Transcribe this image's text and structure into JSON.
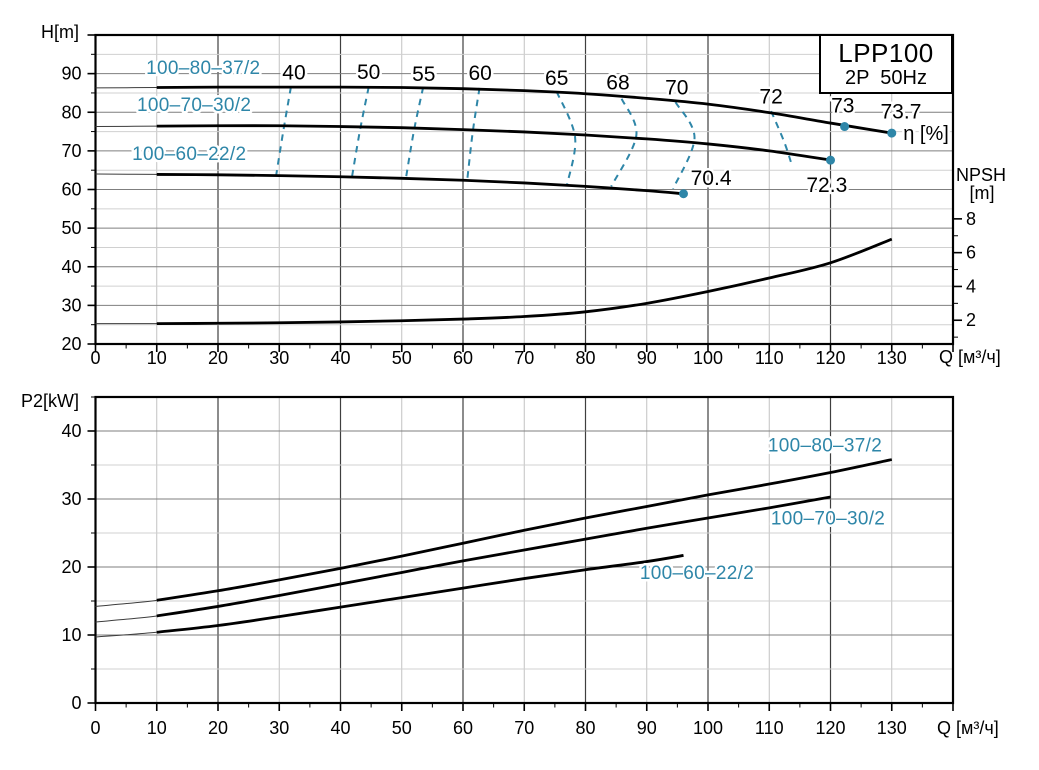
{
  "title_box": {
    "model": "LPP100",
    "spec": "2P  50Hz"
  },
  "colors": {
    "accent": "#2e86a8",
    "curve": "#000000",
    "curve_thin": "#3c3c3c",
    "grid_v_major": "#3f3f3f",
    "grid_v_minor": "#c2c2c2",
    "grid_h_major": "#7f7f7f",
    "grid_h_minor": "#d0d0d0",
    "axis": "#000000",
    "text": "#000000"
  },
  "chart_data": [
    {
      "type": "line",
      "id": "head-chart",
      "ylabel": "H[m]",
      "xlabel": "Q [м³/ч]",
      "xlim": [
        0,
        140
      ],
      "ylim": [
        20,
        100
      ],
      "x_tick_labels": [
        0,
        10,
        20,
        30,
        40,
        50,
        60,
        70,
        80,
        90,
        100,
        110,
        120,
        130
      ],
      "y_tick_labels": [
        20,
        30,
        40,
        50,
        60,
        70,
        80,
        90
      ],
      "y2": {
        "label": "NPSH",
        "unit": "[m]",
        "tick_labels": [
          2,
          4,
          6,
          8
        ],
        "minor_ticks": [
          1,
          3,
          5,
          7
        ],
        "h_offset": 17.4,
        "h_per_unit": 4.375
      },
      "series": [
        {
          "name": "100–80–37/2",
          "points": [
            [
              0,
              86.3
            ],
            [
              10,
              86.4
            ],
            [
              20,
              86.5
            ],
            [
              30,
              86.5
            ],
            [
              40,
              86.5
            ],
            [
              50,
              86.4
            ],
            [
              60,
              86.1
            ],
            [
              70,
              85.6
            ],
            [
              80,
              84.8
            ],
            [
              90,
              83.6
            ],
            [
              100,
              82.1
            ],
            [
              110,
              79.9
            ],
            [
              120,
              77.2
            ],
            [
              130,
              74.6
            ]
          ]
        },
        {
          "name": "100–70–30/2",
          "points": [
            [
              0,
              76.3
            ],
            [
              10,
              76.4
            ],
            [
              20,
              76.5
            ],
            [
              30,
              76.5
            ],
            [
              40,
              76.3
            ],
            [
              50,
              76.0
            ],
            [
              60,
              75.5
            ],
            [
              70,
              74.9
            ],
            [
              80,
              74.1
            ],
            [
              90,
              73.1
            ],
            [
              100,
              71.8
            ],
            [
              110,
              70.0
            ],
            [
              120,
              67.6
            ]
          ]
        },
        {
          "name": "100–60–22/2",
          "points": [
            [
              0,
              64.0
            ],
            [
              10,
              63.9
            ],
            [
              20,
              63.8
            ],
            [
              30,
              63.6
            ],
            [
              40,
              63.3
            ],
            [
              50,
              62.9
            ],
            [
              60,
              62.4
            ],
            [
              70,
              61.7
            ],
            [
              80,
              60.8
            ],
            [
              90,
              59.7
            ],
            [
              96,
              58.9
            ]
          ]
        },
        {
          "name": "NPSH",
          "axis": "y2",
          "points": [
            [
              0,
              1.8
            ],
            [
              10,
              1.8
            ],
            [
              20,
              1.82
            ],
            [
              30,
              1.85
            ],
            [
              40,
              1.9
            ],
            [
              50,
              1.97
            ],
            [
              60,
              2.07
            ],
            [
              70,
              2.22
            ],
            [
              80,
              2.5
            ],
            [
              90,
              3.0
            ],
            [
              100,
              3.7
            ],
            [
              110,
              4.5
            ],
            [
              120,
              5.4
            ],
            [
              130,
              6.8
            ]
          ]
        }
      ],
      "series_labels": [
        {
          "text": "100–80–37/2",
          "q": 17.6,
          "v": 91.5
        },
        {
          "text": "100–70–30/2",
          "q": 16.1,
          "v": 81.9
        },
        {
          "text": "100–60–22/2",
          "q": 15.3,
          "v": 69.2
        }
      ],
      "efficiency_contours": [
        {
          "label": "40",
          "label_q": 32.4,
          "label_v": 90.3,
          "path": [
            [
              31.9,
              86.5
            ],
            [
              30.7,
              75.5
            ],
            [
              29.5,
              63.7
            ]
          ]
        },
        {
          "label": "50",
          "label_q": 44.6,
          "label_v": 90.4,
          "path": [
            [
              44.6,
              86.5
            ],
            [
              43.2,
              75.5
            ],
            [
              41.9,
              63.5
            ]
          ]
        },
        {
          "label": "55",
          "label_q": 53.6,
          "label_v": 89.9,
          "path": [
            [
              53.5,
              86.5
            ],
            [
              52.0,
              75.3
            ],
            [
              50.7,
              63.1
            ]
          ]
        },
        {
          "label": "60",
          "label_q": 62.8,
          "label_v": 90.2,
          "path": [
            [
              62.7,
              86.3
            ],
            [
              61.6,
              75.0
            ],
            [
              60.7,
              62.6
            ]
          ]
        },
        {
          "label": "65",
          "label_q": 75.3,
          "label_v": 88.9,
          "path": [
            [
              75.3,
              85.3
            ],
            [
              78.3,
              73.5
            ],
            [
              77.0,
              61.3
            ]
          ]
        },
        {
          "label": "68",
          "label_q": 85.3,
          "label_v": 87.7,
          "path": [
            [
              85.9,
              83.5
            ],
            [
              88.3,
              74.0
            ],
            [
              84.2,
              60.8
            ]
          ]
        },
        {
          "label": "70",
          "label_q": 94.9,
          "label_v": 86.4,
          "path": [
            [
              94.7,
              82.6
            ],
            [
              97.8,
              73.3
            ],
            [
              94.3,
              60.2
            ]
          ]
        },
        {
          "label": "72",
          "label_q": 110.3,
          "label_v": 84.1,
          "path": [
            [
              110.3,
              80.3
            ],
            [
              112.4,
              72.5
            ],
            [
              113.6,
              66.8
            ]
          ]
        }
      ],
      "markers": [
        {
          "q": 122.3,
          "v": 76.3,
          "label": "73",
          "label_q": 122.0,
          "label_v": 81.7
        },
        {
          "q": 130.0,
          "v": 74.6,
          "label": "73.7",
          "label_q": 131.5,
          "label_v": 80.2
        },
        {
          "q": 120.0,
          "v": 67.6,
          "label": "72.3",
          "label_q": 119.4,
          "label_v": 61.2
        },
        {
          "q": 96.0,
          "v": 58.9,
          "label": "70.4",
          "label_q": 100.5,
          "label_v": 63.0
        }
      ],
      "annotations": [
        {
          "text": "η [%]",
          "q": 135.6,
          "v": 74.6
        }
      ]
    },
    {
      "type": "line",
      "id": "power-chart",
      "ylabel": "P2[kW]",
      "xlabel": "Q [м³/ч]",
      "xlim": [
        0,
        140
      ],
      "ylim": [
        0,
        45
      ],
      "x_tick_labels": [
        0,
        10,
        20,
        30,
        40,
        50,
        60,
        70,
        80,
        90,
        100,
        110,
        120,
        130
      ],
      "y_tick_labels": [
        0,
        10,
        20,
        30,
        40
      ],
      "series": [
        {
          "name": "100–80–37/2",
          "points": [
            [
              0,
              14.2
            ],
            [
              10,
              15.1
            ],
            [
              20,
              16.5
            ],
            [
              30,
              18.1
            ],
            [
              40,
              19.8
            ],
            [
              50,
              21.6
            ],
            [
              60,
              23.5
            ],
            [
              70,
              25.4
            ],
            [
              80,
              27.2
            ],
            [
              90,
              28.9
            ],
            [
              100,
              30.6
            ],
            [
              110,
              32.2
            ],
            [
              120,
              33.9
            ],
            [
              130,
              35.8
            ]
          ]
        },
        {
          "name": "100–70–30/2",
          "points": [
            [
              0,
              11.9
            ],
            [
              10,
              12.8
            ],
            [
              20,
              14.2
            ],
            [
              30,
              15.8
            ],
            [
              40,
              17.5
            ],
            [
              50,
              19.2
            ],
            [
              60,
              20.9
            ],
            [
              70,
              22.5
            ],
            [
              80,
              24.1
            ],
            [
              90,
              25.7
            ],
            [
              100,
              27.2
            ],
            [
              110,
              28.7
            ],
            [
              120,
              30.3
            ]
          ]
        },
        {
          "name": "100–60–22/2",
          "points": [
            [
              0,
              9.7
            ],
            [
              10,
              10.4
            ],
            [
              20,
              11.4
            ],
            [
              30,
              12.7
            ],
            [
              40,
              14.1
            ],
            [
              50,
              15.5
            ],
            [
              60,
              16.9
            ],
            [
              70,
              18.3
            ],
            [
              80,
              19.6
            ],
            [
              90,
              20.8
            ],
            [
              96,
              21.7
            ]
          ]
        }
      ],
      "series_labels": [
        {
          "text": "100–80–37/2",
          "q": 119.1,
          "v": 37.9
        },
        {
          "text": "100–70–30/2",
          "q": 119.6,
          "v": 27.1
        },
        {
          "text": "100–60–22/2",
          "q": 98.2,
          "v": 19.1
        }
      ]
    }
  ]
}
